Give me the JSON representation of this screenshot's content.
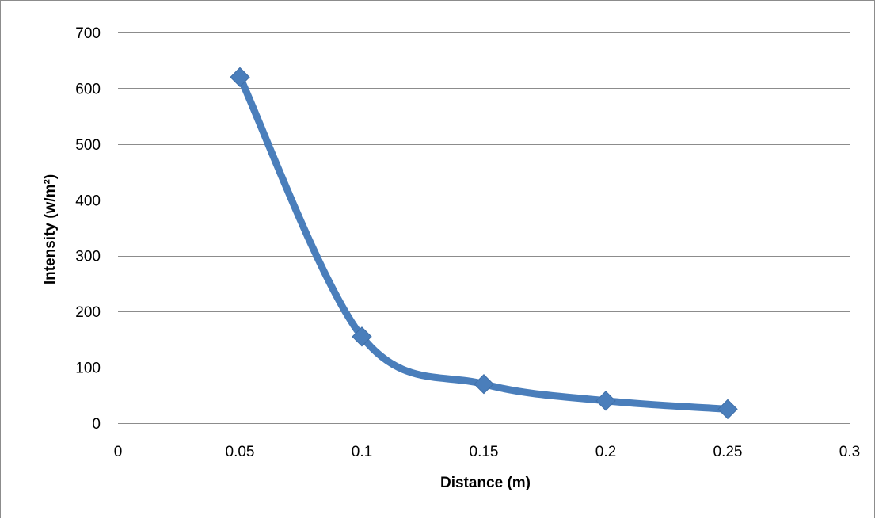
{
  "chart_data": {
    "type": "scatter",
    "title": "",
    "xlabel": "Distance (m)",
    "ylabel": "Intensity (w/m²)",
    "xlim": [
      0,
      0.3
    ],
    "ylim": [
      0,
      700
    ],
    "x_ticks": [
      0,
      0.05,
      0.1,
      0.15,
      0.2,
      0.25,
      0.3
    ],
    "x_tick_labels": [
      "0",
      "0.05",
      "0.1",
      "0.15",
      "0.2",
      "0.25",
      "0.3"
    ],
    "y_ticks": [
      0,
      100,
      200,
      300,
      400,
      500,
      600,
      700
    ],
    "y_tick_labels": [
      "0",
      "100",
      "200",
      "300",
      "400",
      "500",
      "600",
      "700"
    ],
    "grid": true,
    "legend": "none",
    "marker": "diamond",
    "line": "smooth",
    "color": "#4a7ebb",
    "series": [
      {
        "x": [
          0.05,
          0.1,
          0.15,
          0.2,
          0.25
        ],
        "y": [
          620,
          155,
          70,
          40,
          25
        ]
      }
    ]
  }
}
